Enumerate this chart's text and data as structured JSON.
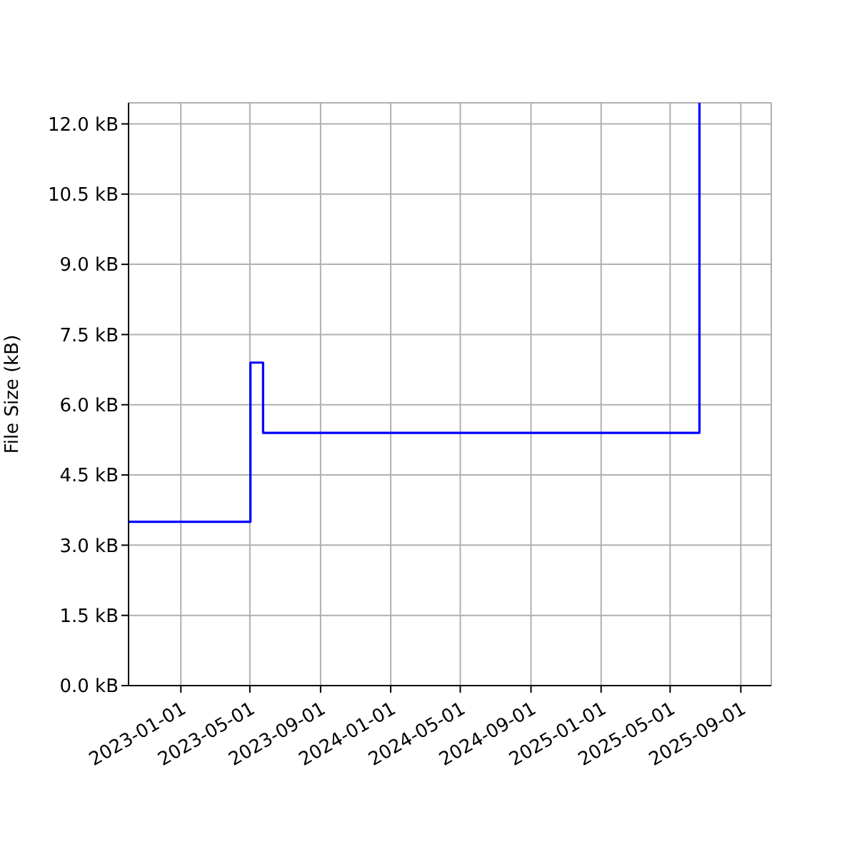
{
  "chart_data": {
    "type": "step",
    "ylabel": "File Size (kB)",
    "x": [
      "2022-10-02",
      "2023-05-02",
      "2023-05-24",
      "2025-06-21"
    ],
    "series": [
      {
        "color": "#0000ff",
        "values": [
          3.5,
          6.9,
          5.4,
          12.45
        ]
      }
    ],
    "xlim": [
      "2022-10-02",
      "2025-10-24"
    ],
    "xticks": [
      "2023-01-01",
      "2023-05-01",
      "2023-09-01",
      "2024-01-01",
      "2024-05-01",
      "2024-09-01",
      "2025-01-01",
      "2025-05-01",
      "2025-09-01"
    ],
    "ylim": [
      0,
      12.45
    ],
    "yticks": [
      {
        "value": 0,
        "label": "0.0 kB"
      },
      {
        "value": 1.5,
        "label": "1.5 kB"
      },
      {
        "value": 3,
        "label": "3.0 kB"
      },
      {
        "value": 4.5,
        "label": "4.5 kB"
      },
      {
        "value": 6,
        "label": "6.0 kB"
      },
      {
        "value": 7.5,
        "label": "7.5 kB"
      },
      {
        "value": 9,
        "label": "9.0 kB"
      },
      {
        "value": 10.5,
        "label": "10.5 kB"
      },
      {
        "value": 12,
        "label": "12.0 kB"
      }
    ],
    "grid": true
  }
}
